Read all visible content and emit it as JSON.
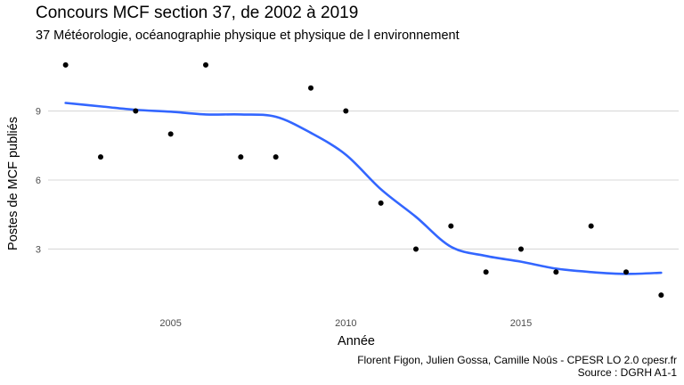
{
  "chart_data": {
    "type": "scatter",
    "title": "Concours MCF section 37, de 2002 à 2019",
    "subtitle": "37 Météorologie, océanographie physique et physique de l environnement",
    "xlabel": "Année",
    "ylabel": "Postes de MCF publiés",
    "xlim": [
      2001.5,
      2019.5
    ],
    "ylim": [
      0.5,
      11.5
    ],
    "x_ticks": [
      2005,
      2010,
      2015
    ],
    "y_ticks": [
      3,
      6,
      9
    ],
    "grid": "horizontal-major",
    "points": {
      "x": [
        2002,
        2003,
        2004,
        2005,
        2006,
        2007,
        2008,
        2009,
        2010,
        2011,
        2012,
        2013,
        2014,
        2015,
        2016,
        2017,
        2018,
        2019
      ],
      "y": [
        11,
        7,
        9,
        8,
        11,
        7,
        7,
        10,
        9,
        5,
        3,
        4,
        2,
        3,
        2,
        4,
        2,
        1
      ]
    },
    "smooth": {
      "color": "#3366ff",
      "x": [
        2002,
        2003,
        2004,
        2005,
        2006,
        2007,
        2008,
        2009,
        2010,
        2011,
        2012,
        2013,
        2014,
        2015,
        2016,
        2017,
        2018,
        2019
      ],
      "y": [
        9.35,
        9.2,
        9.05,
        8.97,
        8.85,
        8.85,
        8.75,
        8.05,
        7.1,
        5.6,
        4.4,
        3.1,
        2.7,
        2.45,
        2.15,
        2.0,
        1.92,
        1.97
      ]
    },
    "point_color": "#000000",
    "grid_color": "#d9d9d9"
  },
  "caption": {
    "line1": "Florent Figon, Julien Gossa, Camille Noûs - CPESR LO 2.0 cpesr.fr",
    "line2": "Source : DGRH A1-1"
  }
}
